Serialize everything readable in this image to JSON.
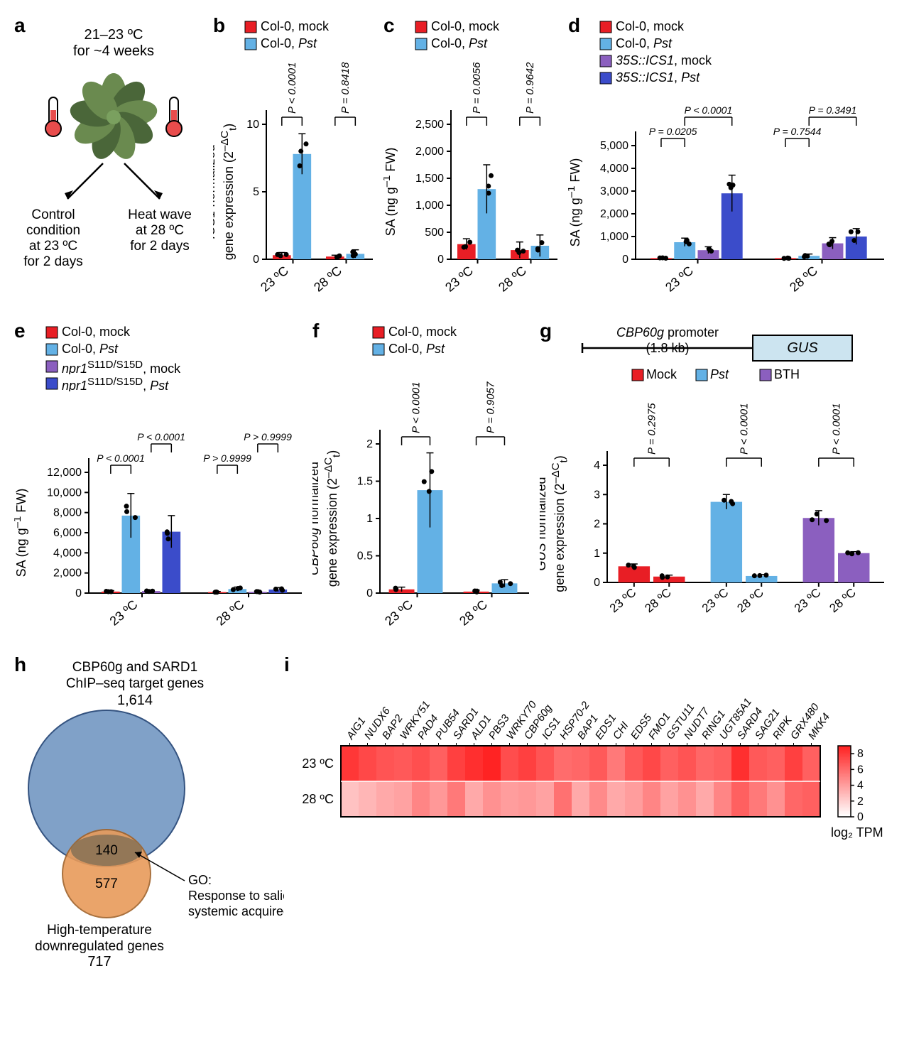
{
  "colors": {
    "red": "#e81e25",
    "blue": "#63b1e5",
    "purple": "#8b5fbf",
    "darkblue": "#3b4cca",
    "venn_blue": "#7a9cc6",
    "venn_orange": "#e89b5a",
    "venn_overlap": "#8b7355",
    "gus_box": "#cce4f0",
    "plant_green": "#6a8a4f",
    "plant_dark": "#4a6639",
    "thermo_red": "#e84c4c"
  },
  "panel_a": {
    "label": "a",
    "top_text": "21–23 ºC\nfor ~4 weeks",
    "left_text": "Control\ncondition\nat 23 ºC\nfor 2 days",
    "right_text": "Heat wave\nat 28 ºC\nfor 2 days"
  },
  "panel_b": {
    "label": "b",
    "legend": [
      {
        "color": "red",
        "text": "Col-0, mock"
      },
      {
        "color": "blue",
        "text_html": "Col-0, <i>Pst</i>"
      }
    ],
    "ylabel_html": "<i>ICS1</i> normalized<br>gene expression (2<sup>–ΔC</sup><sub>t</sub>)",
    "yticks": [
      0,
      5,
      10
    ],
    "ymax": 10,
    "xticks": [
      "23 ºC",
      "28 ºC"
    ],
    "groups": [
      {
        "bars": [
          {
            "color": "red",
            "val": 0.3,
            "err": 0.2
          },
          {
            "color": "blue",
            "val": 7.8,
            "err": 1.5
          }
        ],
        "pval": "P < 0.0001"
      },
      {
        "bars": [
          {
            "color": "red",
            "val": 0.2,
            "err": 0.1
          },
          {
            "color": "blue",
            "val": 0.4,
            "err": 0.3
          }
        ],
        "pval": "P = 0.8418"
      }
    ]
  },
  "panel_c": {
    "label": "c",
    "legend": [
      {
        "color": "red",
        "text": "Col-0, mock"
      },
      {
        "color": "blue",
        "text_html": "Col-0, <i>Pst</i>"
      }
    ],
    "ylabel_html": "SA (ng g<sup>–1</sup> FW)",
    "yticks": [
      0,
      500,
      1000,
      1500,
      2000,
      2500
    ],
    "ymax": 2500,
    "xticks": [
      "23 ºC",
      "28 ºC"
    ],
    "groups": [
      {
        "bars": [
          {
            "color": "red",
            "val": 280,
            "err": 100
          },
          {
            "color": "blue",
            "val": 1300,
            "err": 450
          }
        ],
        "pval": "P = 0.0056"
      },
      {
        "bars": [
          {
            "color": "red",
            "val": 170,
            "err": 150
          },
          {
            "color": "blue",
            "val": 250,
            "err": 200
          }
        ],
        "pval": "P = 0.9642"
      }
    ]
  },
  "panel_d": {
    "label": "d",
    "legend": [
      {
        "color": "red",
        "text": "Col-0, mock"
      },
      {
        "color": "blue",
        "text_html": "Col-0, <i>Pst</i>"
      },
      {
        "color": "purple",
        "text_html": "<i>35S::ICS1</i>, mock"
      },
      {
        "color": "darkblue",
        "text_html": "<i>35S::ICS1</i>, <i>Pst</i>"
      }
    ],
    "ylabel_html": "SA (ng g<sup>–1</sup> FW)",
    "yticks": [
      0,
      1000,
      2000,
      3000,
      4000,
      5000
    ],
    "ymax": 5000,
    "xticks": [
      "23 ºC",
      "28 ºC"
    ],
    "groups": [
      {
        "bars": [
          {
            "color": "red",
            "val": 50,
            "err": 30
          },
          {
            "color": "blue",
            "val": 750,
            "err": 180
          },
          {
            "color": "purple",
            "val": 400,
            "err": 150
          },
          {
            "color": "darkblue",
            "val": 2900,
            "err": 800
          }
        ],
        "pvals": [
          {
            "text": "P = 0.0205",
            "span": [
              0,
              1
            ]
          },
          {
            "text": "P < 0.0001",
            "span": [
              1,
              3
            ]
          }
        ]
      },
      {
        "bars": [
          {
            "color": "red",
            "val": 50,
            "err": 30
          },
          {
            "color": "blue",
            "val": 150,
            "err": 80
          },
          {
            "color": "purple",
            "val": 700,
            "err": 250
          },
          {
            "color": "darkblue",
            "val": 1000,
            "err": 350
          }
        ],
        "pvals": [
          {
            "text": "P = 0.7544",
            "span": [
              0,
              1
            ]
          },
          {
            "text": "P = 0.3491",
            "span": [
              1,
              3
            ]
          }
        ]
      }
    ]
  },
  "panel_e": {
    "label": "e",
    "legend": [
      {
        "color": "red",
        "text": "Col-0, mock"
      },
      {
        "color": "blue",
        "text_html": "Col-0, <i>Pst</i>"
      },
      {
        "color": "purple",
        "text_html": "<i>npr1</i><sup>S11D/S15D</sup>, mock"
      },
      {
        "color": "darkblue",
        "text_html": "<i>npr1</i><sup>S11D/S15D</sup>, <i>Pst</i>"
      }
    ],
    "ylabel_html": "SA (ng g<sup>–1</sup> FW)",
    "yticks": [
      0,
      2000,
      4000,
      6000,
      8000,
      10000,
      12000
    ],
    "ymax": 12000,
    "xticks": [
      "23 ºC",
      "28 ºC"
    ],
    "groups": [
      {
        "bars": [
          {
            "color": "red",
            "val": 150,
            "err": 100
          },
          {
            "color": "blue",
            "val": 7700,
            "err": 2200
          },
          {
            "color": "purple",
            "val": 200,
            "err": 100
          },
          {
            "color": "darkblue",
            "val": 6100,
            "err": 1600
          }
        ],
        "pvals": [
          {
            "text": "P < 0.0001",
            "span": [
              0,
              1
            ]
          },
          {
            "text": "P < 0.0001",
            "span": [
              2,
              3
            ]
          }
        ]
      },
      {
        "bars": [
          {
            "color": "red",
            "val": 100,
            "err": 60
          },
          {
            "color": "blue",
            "val": 400,
            "err": 200
          },
          {
            "color": "purple",
            "val": 120,
            "err": 80
          },
          {
            "color": "darkblue",
            "val": 350,
            "err": 200
          }
        ],
        "pvals": [
          {
            "text": "P > 0.9999",
            "span": [
              0,
              1
            ]
          },
          {
            "text": "P > 0.9999",
            "span": [
              2,
              3
            ]
          }
        ]
      }
    ]
  },
  "panel_f": {
    "label": "f",
    "legend": [
      {
        "color": "red",
        "text": "Col-0, mock"
      },
      {
        "color": "blue",
        "text_html": "Col-0, <i>Pst</i>"
      }
    ],
    "ylabel_html": "<i>CBP60g</i> normalized<br>gene expression (2<sup>–ΔC</sup><sub>t</sub>)",
    "yticks": [
      0,
      0.5,
      1.0,
      1.5,
      2.0
    ],
    "ymax": 2.0,
    "xticks": [
      "23 ºC",
      "28 ºC"
    ],
    "groups": [
      {
        "bars": [
          {
            "color": "red",
            "val": 0.05,
            "err": 0.03
          },
          {
            "color": "blue",
            "val": 1.38,
            "err": 0.5
          }
        ],
        "pval": "P < 0.0001"
      },
      {
        "bars": [
          {
            "color": "red",
            "val": 0.02,
            "err": 0.02
          },
          {
            "color": "blue",
            "val": 0.13,
            "err": 0.05
          }
        ],
        "pval": "P = 0.9057"
      }
    ]
  },
  "panel_g": {
    "label": "g",
    "diagram": {
      "promoter_text": "<i>CBP60g</i> promoter<br>(1.8 kb)",
      "gus_text": "GUS"
    },
    "legend": [
      {
        "color": "red",
        "text": "Mock"
      },
      {
        "color": "blue",
        "text_html": "<i>Pst</i>"
      },
      {
        "color": "purple",
        "text": "BTH"
      }
    ],
    "ylabel_html": "<i>GUS</i> normalized<br>gene expression (2<sup>–ΔC</sup><sub>t</sub>)",
    "yticks": [
      0,
      1,
      2,
      3,
      4
    ],
    "ymax": 4,
    "xticks": [
      "23 ºC",
      "28 ºC",
      "23 ºC",
      "28 ºC",
      "23 ºC",
      "28 ºC"
    ],
    "groups": [
      {
        "bars": [
          {
            "color": "red",
            "val": 0.55,
            "err": 0.08
          },
          {
            "color": "red",
            "val": 0.2,
            "err": 0.05
          }
        ],
        "pval": "P = 0.2975"
      },
      {
        "bars": [
          {
            "color": "blue",
            "val": 2.75,
            "err": 0.25
          },
          {
            "color": "blue",
            "val": 0.22,
            "err": 0.05
          }
        ],
        "pval": "P < 0.0001"
      },
      {
        "bars": [
          {
            "color": "purple",
            "val": 2.2,
            "err": 0.25
          },
          {
            "color": "purple",
            "val": 1.0,
            "err": 0.05
          }
        ],
        "pval": "P < 0.0001"
      }
    ]
  },
  "panel_h": {
    "label": "h",
    "top_text": "CBP60g and SARD1\nChIP–seq target genes",
    "top_num": "1,614",
    "overlap": "140",
    "bottom_num_in": "577",
    "bottom_text": "High-temperature\ndownregulated genes",
    "bottom_num": "717",
    "go_text": "GO:\nResponse to salicylic acid\nsystemic acquired resistance"
  },
  "panel_i": {
    "label": "i",
    "genes": [
      "AIG1",
      "NUDX6",
      "BAP2",
      "WRKY51",
      "PAD4",
      "PUB54",
      "SARD1",
      "ALD1",
      "PBS3",
      "WRKY70",
      "CBP60g",
      "ICS1",
      "HSP70-2",
      "BAP1",
      "EDS1",
      "CHI",
      "EDS5",
      "FMO1",
      "GSTU11",
      "NUDT7",
      "RING1",
      "UGT85A1",
      "SARD4",
      "SAG21",
      "RIPK",
      "GRX480",
      "MKK4"
    ],
    "rows": [
      "23 ºC",
      "28 ºC"
    ],
    "values_23": [
      8.2,
      7.5,
      7.0,
      6.8,
      7.2,
      6.5,
      7.8,
      8.5,
      9.0,
      7.3,
      7.8,
      7.0,
      6.0,
      6.2,
      6.8,
      5.5,
      6.8,
      7.5,
      6.5,
      7.0,
      6.2,
      6.5,
      8.5,
      6.8,
      6.5,
      7.8,
      6.5
    ],
    "values_28": [
      2.5,
      3.0,
      3.5,
      3.8,
      5.0,
      4.2,
      5.5,
      3.5,
      4.5,
      4.0,
      4.2,
      3.8,
      5.8,
      3.5,
      4.8,
      3.5,
      4.0,
      5.0,
      3.8,
      4.5,
      3.5,
      5.0,
      6.5,
      5.5,
      4.5,
      6.2,
      6.5
    ],
    "colorbar": {
      "min": 0,
      "max": 8,
      "ticks": [
        0,
        2,
        4,
        6,
        8
      ],
      "label": "log₂ TPM"
    }
  }
}
